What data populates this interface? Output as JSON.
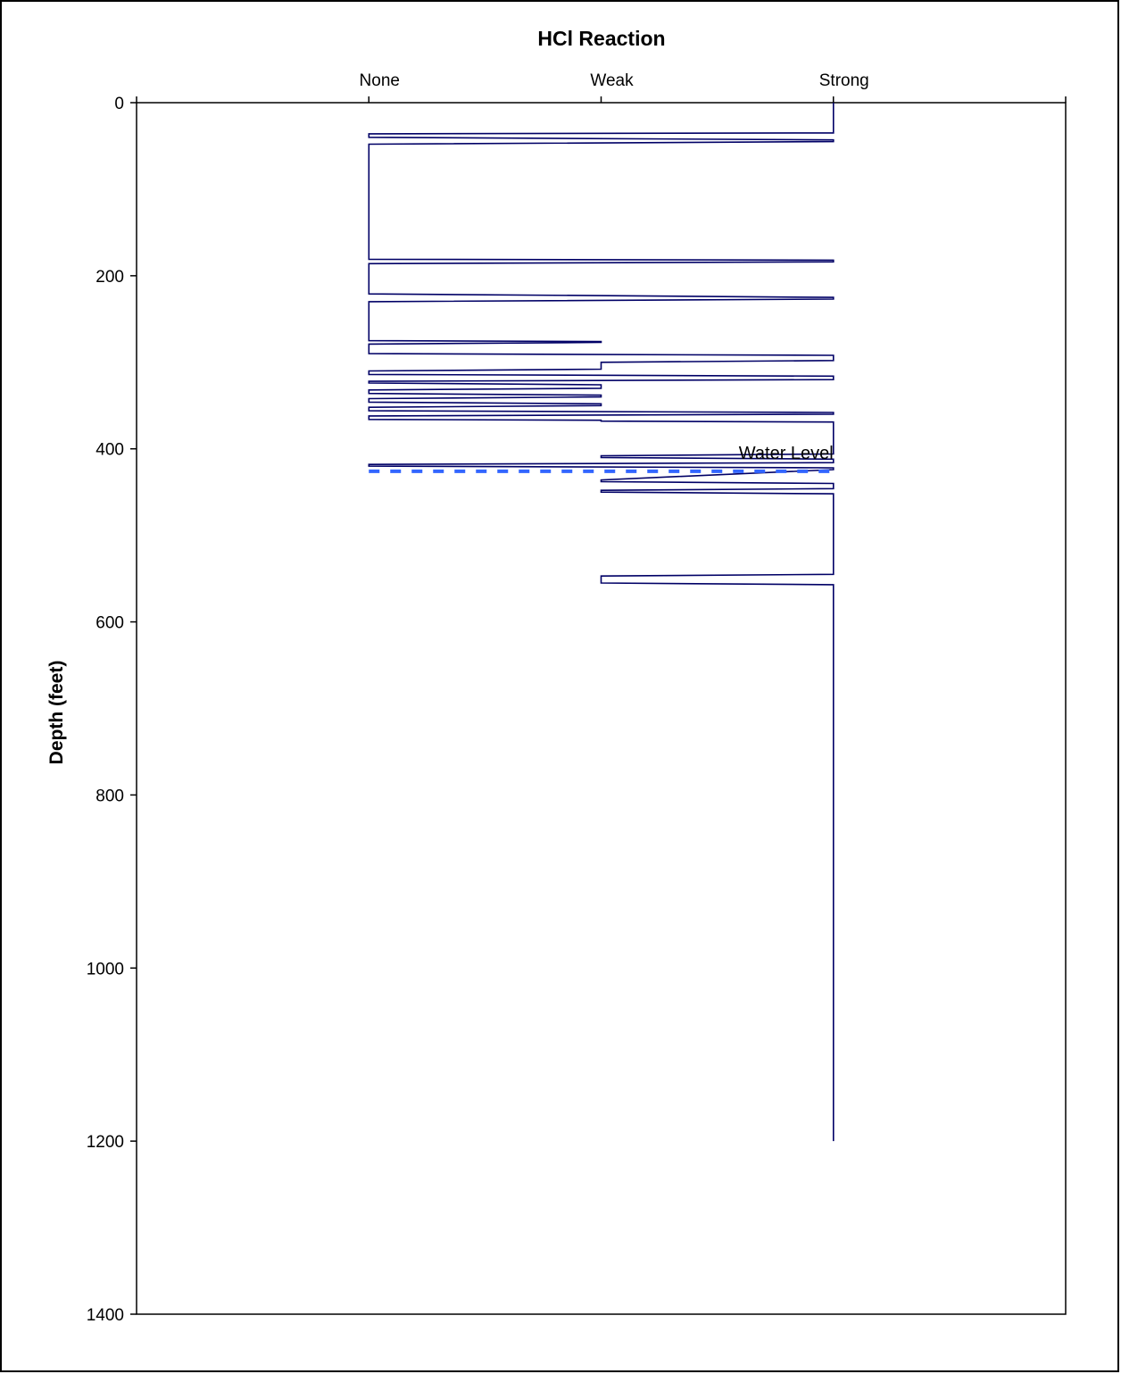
{
  "chart_data": {
    "type": "line",
    "title": "HCl Reaction",
    "xlabel": "",
    "ylabel": "Depth (feet)",
    "x_categories": [
      "None",
      "Weak",
      "Strong"
    ],
    "x_values_map": {
      "None": 0,
      "Weak": 1,
      "Strong": 2
    },
    "xlim": [
      -1,
      3
    ],
    "ylim": [
      0,
      1400
    ],
    "y_ticks": [
      "0",
      "200",
      "400",
      "600",
      "800",
      "1000",
      "1200",
      "1400"
    ],
    "y_tick_values": [
      0,
      200,
      400,
      600,
      800,
      1000,
      1200,
      1400
    ],
    "y_inverted": true,
    "grid": false,
    "series": [
      {
        "color": "#000066",
        "x": [
          2,
          2,
          0,
          0,
          2,
          2,
          0,
          0,
          2,
          2,
          0,
          0,
          2,
          2,
          0,
          0,
          1,
          1,
          0,
          0,
          2,
          2,
          1,
          1,
          0,
          0,
          2,
          2,
          0,
          0,
          1,
          1,
          0,
          0,
          1,
          1,
          0,
          0,
          1,
          1,
          0,
          0,
          2,
          2,
          0,
          0,
          1,
          1,
          2,
          2,
          1,
          1,
          2,
          2,
          0,
          0,
          2,
          2,
          1,
          1,
          2,
          2,
          1,
          1,
          2,
          2,
          1,
          1,
          2,
          2
        ],
        "y": [
          0,
          35,
          36,
          40,
          43,
          45,
          48,
          181,
          182,
          184,
          186,
          221,
          225,
          227,
          230,
          275,
          276,
          277,
          279,
          290,
          292,
          298,
          300,
          308,
          310,
          314,
          316,
          320,
          322,
          324,
          326,
          330,
          332,
          336,
          338,
          340,
          342,
          346,
          348,
          350,
          352,
          356,
          358,
          360,
          362,
          366,
          367,
          368,
          369,
          406,
          408,
          410,
          412,
          416,
          418,
          420,
          422,
          424,
          436,
          438,
          440,
          446,
          448,
          450,
          452,
          545,
          547,
          555,
          557,
          1200
        ]
      }
    ],
    "annotations": [
      {
        "text": "Water Level",
        "y": 426,
        "color": "#3366ff",
        "style": "dashed"
      }
    ]
  }
}
